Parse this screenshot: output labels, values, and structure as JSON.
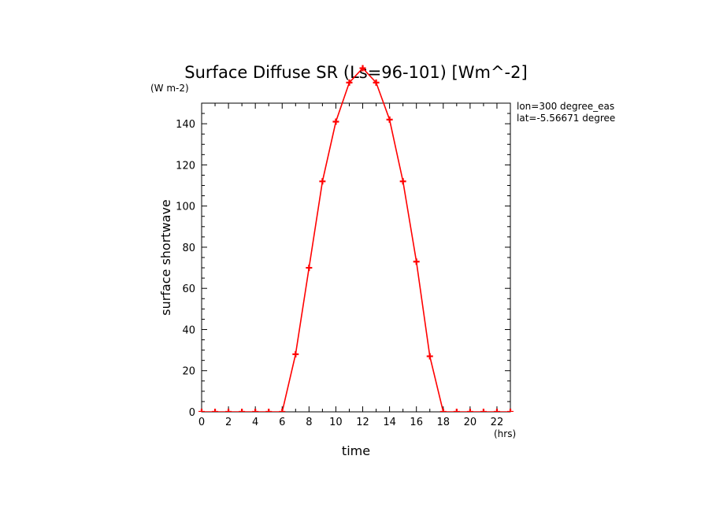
{
  "chart_data": {
    "type": "line",
    "title": "Surface Diffuse SR (Ls=96-101) [Wm^-2]",
    "ylabel": "surface shortwave",
    "xlabel": "time",
    "y_units": "(W m-2)",
    "x_units": "(hrs)",
    "xlim": [
      0,
      23
    ],
    "ylim": [
      0,
      150
    ],
    "xticks": [
      0,
      2,
      4,
      6,
      8,
      10,
      12,
      14,
      16,
      18,
      20,
      22
    ],
    "yticks": [
      0,
      20,
      40,
      60,
      80,
      100,
      120,
      140
    ],
    "grid": false,
    "line_color": "#ff0000",
    "annotations": [
      "lon=300 degree_eas",
      "lat=-5.56671 degree"
    ],
    "series": [
      {
        "x": [
          0,
          1,
          2,
          3,
          4,
          5,
          6,
          7,
          8,
          9,
          10,
          11,
          12,
          13,
          14,
          15,
          16,
          17,
          18,
          19,
          20,
          21,
          22,
          23
        ],
        "values": [
          0,
          0,
          0,
          0,
          0,
          0,
          0,
          28,
          70,
          112,
          141,
          160,
          167,
          160,
          142,
          112,
          73,
          27,
          0,
          0,
          0,
          0,
          0,
          0
        ]
      }
    ]
  }
}
